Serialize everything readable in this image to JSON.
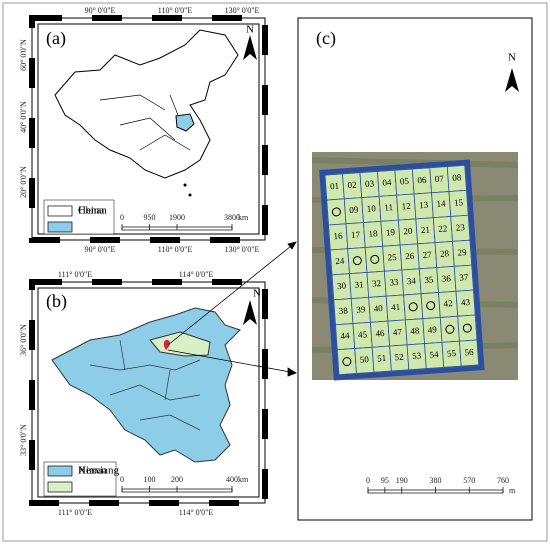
{
  "panel_a": {
    "label": "(a)",
    "north": "N",
    "top_ticks": [
      "90° 0'0\"E",
      "110° 0'0\"E",
      "130° 0'0\"E"
    ],
    "bottom_ticks": [
      "90° 0'0\"E",
      "110° 0'0\"E",
      "130° 0'0\"E"
    ],
    "left_ticks": [
      "60° 0'0\"N",
      "40° 0'0\"N",
      "20° 0'0\"N"
    ],
    "legend": [
      "China",
      "Henan"
    ],
    "scale": {
      "ticks": [
        0,
        950,
        1900,
        3800
      ],
      "unit": "km"
    }
  },
  "panel_b": {
    "label": "(b)",
    "north": "N",
    "top_ticks": [
      "111° 0'0\"E",
      "114° 0'0\"E"
    ],
    "bottom_ticks": [
      "111° 0'0\"E",
      "114° 0'0\"E"
    ],
    "left_ticks": [
      "36° 0'0\"N",
      "33° 0'0\"N"
    ],
    "legend": [
      "Henan",
      "Xinxiang"
    ],
    "scale": {
      "ticks": [
        0,
        100,
        200,
        400
      ],
      "unit": "km"
    }
  },
  "panel_c": {
    "label": "(c)",
    "north": "N",
    "grid": [
      [
        "01",
        "02",
        "03",
        "04",
        "05",
        "06",
        "07",
        "08"
      ],
      [
        null,
        "09",
        "10",
        "11",
        "12",
        "13",
        "14",
        "15"
      ],
      [
        "16",
        "17",
        "18",
        "19",
        "20",
        "21",
        "22",
        "23"
      ],
      [
        "24",
        null,
        null,
        "25",
        "26",
        "27",
        "28",
        "29"
      ],
      [
        "30",
        "31",
        "32",
        "33",
        "34",
        "35",
        "36",
        "37"
      ],
      [
        "38",
        "39",
        "40",
        "41",
        null,
        null,
        "42",
        "43"
      ],
      [
        "44",
        "45",
        "46",
        "47",
        "48",
        "49",
        null,
        null
      ],
      [
        null,
        "50",
        "51",
        "52",
        "53",
        "54",
        "55",
        "56"
      ]
    ],
    "scale": {
      "ticks": [
        0,
        95,
        190,
        380,
        570,
        760
      ],
      "unit": "m"
    }
  }
}
